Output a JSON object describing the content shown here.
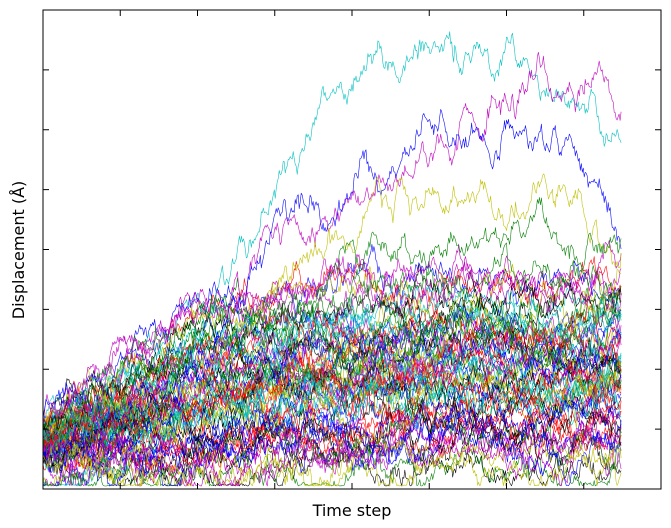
{
  "chart_data": {
    "type": "line",
    "title": "",
    "xlabel": "Time step",
    "ylabel": "Displacement (Å)",
    "grid": false,
    "legend": "none",
    "x_tick_count": 8,
    "y_tick_count": 8,
    "steps": 580,
    "xlim": [
      0,
      620
    ],
    "ylim": [
      0,
      8
    ],
    "seed": 7,
    "colors": [
      "#0000ff",
      "#008000",
      "#ff0000",
      "#00bfbf",
      "#bf00bf",
      "#bfbf00",
      "#000000"
    ],
    "highlight_series": [
      {
        "name": "",
        "color": "#00bfbf",
        "endpoints": [
          0,
          0.4,
          3.0,
          5.5,
          7.2,
          7.3,
          7.0,
          5.3
        ]
      },
      {
        "name": "",
        "color": "#bf00bf",
        "endpoints": [
          0,
          0.6,
          2.1,
          4.6,
          5.0,
          6.0,
          7.0,
          6.5
        ]
      },
      {
        "name": "",
        "color": "#0000ff",
        "endpoints": [
          0,
          0.7,
          2.2,
          4.3,
          5.3,
          5.8,
          6.2,
          4.5
        ]
      },
      {
        "name": "",
        "color": "#bfbf00",
        "endpoints": [
          0,
          0.5,
          2.0,
          3.8,
          4.5,
          4.8,
          5.0,
          4.0
        ]
      },
      {
        "name": "",
        "color": "#008000",
        "endpoints": [
          0,
          0.6,
          2.6,
          3.2,
          4.0,
          4.2,
          4.5,
          3.8
        ]
      }
    ],
    "band_series_count": 75,
    "band_mean_profile": [
      0.8,
      1.3,
      1.7,
      1.9,
      2.0,
      2.1,
      2.0,
      2.1
    ],
    "band_spread": 1.3
  }
}
